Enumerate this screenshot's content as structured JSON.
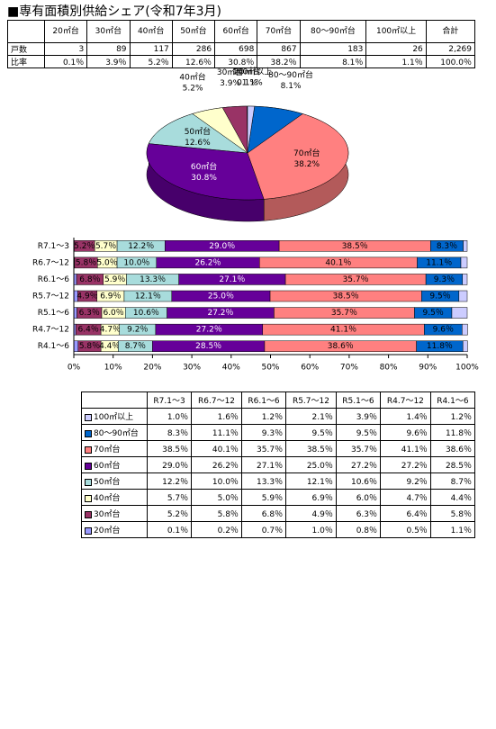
{
  "title": "■専有面積別供給シェア(令和7年3月)",
  "summary_table": {
    "header": [
      "20㎡台",
      "30㎡台",
      "40㎡台",
      "50㎡台",
      "60㎡台",
      "70㎡台",
      "80～90㎡台",
      "100㎡以上",
      "合計"
    ],
    "rows": [
      {
        "label": "戸数",
        "cells": [
          "3",
          "89",
          "117",
          "286",
          "698",
          "867",
          "183",
          "26",
          "2,269"
        ]
      },
      {
        "label": "比率",
        "cells": [
          "0.1％",
          "3.9％",
          "5.2％",
          "12.6％",
          "30.8％",
          "38.2％",
          "8.1％",
          "1.1％",
          "100.0％"
        ]
      }
    ]
  },
  "chart_data": [
    {
      "type": "pie",
      "categories": [
        "20㎡台",
        "30㎡台",
        "40㎡台",
        "50㎡台",
        "60㎡台",
        "70㎡台",
        "80～90㎡台",
        "100㎡以上"
      ],
      "values": [
        0.1,
        3.9,
        5.2,
        12.6,
        30.8,
        38.2,
        8.1,
        1.1
      ],
      "value_labels": [
        "0.1%",
        "3.9%",
        "5.2%",
        "12.6%",
        "30.8%",
        "38.2%",
        "8.1%",
        "1.1%"
      ],
      "colors": [
        "#9999ff",
        "#993366",
        "#ffffcc",
        "#a8dcdc",
        "#660099",
        "#ff8080",
        "#0066cc",
        "#ccccff"
      ]
    },
    {
      "type": "stacked-bar",
      "categories": [
        "R7.1～3",
        "R6.7～12",
        "R6.1～6",
        "R5.7～12",
        "R5.1～6",
        "R4.7～12",
        "R4.1～6"
      ],
      "series": [
        {
          "name": "20㎡台",
          "color": "#9999ff",
          "values": [
            0.1,
            0.2,
            0.7,
            1.0,
            0.8,
            0.5,
            1.1
          ]
        },
        {
          "name": "30㎡台",
          "color": "#993366",
          "values": [
            5.2,
            5.8,
            6.8,
            4.9,
            6.3,
            6.4,
            5.8
          ],
          "value_labels": [
            "5.2％",
            "5.8％",
            "6.8％",
            "4.9％",
            "6.3％",
            "6.4％",
            "5.8％"
          ]
        },
        {
          "name": "40㎡台",
          "color": "#ffffcc",
          "values": [
            5.7,
            5.0,
            5.9,
            6.9,
            6.0,
            4.7,
            4.4
          ],
          "value_labels": [
            "5.7％",
            "5.0％",
            "5.9％",
            "6.9％",
            "6.0％",
            "4.7％",
            "4.4％"
          ]
        },
        {
          "name": "50㎡台",
          "color": "#a8dcdc",
          "values": [
            12.2,
            10.0,
            13.3,
            12.1,
            10.6,
            9.2,
            8.7
          ],
          "value_labels": [
            "12.2％",
            "10.0％",
            "13.3％",
            "12.1％",
            "10.6％",
            "9.2％",
            "8.7％"
          ]
        },
        {
          "name": "60㎡台",
          "color": "#660099",
          "values": [
            29.0,
            26.2,
            27.1,
            25.0,
            27.2,
            27.2,
            28.5
          ],
          "value_labels": [
            "29.0％",
            "26.2％",
            "27.1％",
            "25.0％",
            "27.2％",
            "27.2％",
            "28.5％"
          ]
        },
        {
          "name": "70㎡台",
          "color": "#ff8080",
          "values": [
            38.5,
            40.1,
            35.7,
            38.5,
            35.7,
            41.1,
            38.6
          ],
          "value_labels": [
            "38.5％",
            "40.1％",
            "35.7％",
            "38.5％",
            "35.7％",
            "41.1％",
            "38.6％"
          ]
        },
        {
          "name": "80～90㎡台",
          "color": "#0066cc",
          "values": [
            8.3,
            11.1,
            9.3,
            9.5,
            9.5,
            9.6,
            11.8
          ],
          "value_labels": [
            "8.3％",
            "11.1％",
            "9.3％",
            "9.5％",
            "9.5％",
            "9.6％",
            "11.8％"
          ]
        },
        {
          "name": "100㎡以上",
          "color": "#ccccff",
          "values": [
            1.0,
            1.6,
            1.2,
            2.1,
            3.9,
            1.4,
            1.2
          ]
        }
      ],
      "xlim": [
        0,
        100
      ],
      "xticks": [
        {
          "value": 0,
          "label": "0%"
        },
        {
          "value": 10,
          "label": "10%"
        },
        {
          "value": 20,
          "label": "20%"
        },
        {
          "value": 30,
          "label": "30%"
        },
        {
          "value": 40,
          "label": "40%"
        },
        {
          "value": 50,
          "label": "50%"
        },
        {
          "value": 60,
          "label": "60%"
        },
        {
          "value": 70,
          "label": "70%"
        },
        {
          "value": 80,
          "label": "80%"
        },
        {
          "value": 90,
          "label": "90%"
        },
        {
          "value": 100,
          "label": "100%"
        }
      ]
    }
  ],
  "data_table": {
    "rows": [
      [
        "1.0％",
        "1.6％",
        "1.2％",
        "2.1％",
        "3.9％",
        "1.4％",
        "1.2％"
      ],
      [
        "8.3％",
        "11.1％",
        "9.3％",
        "9.5％",
        "9.5％",
        "9.6％",
        "11.8％"
      ],
      [
        "38.5％",
        "40.1％",
        "35.7％",
        "38.5％",
        "35.7％",
        "41.1％",
        "38.6％"
      ],
      [
        "29.0％",
        "26.2％",
        "27.1％",
        "25.0％",
        "27.2％",
        "27.2％",
        "28.5％"
      ],
      [
        "12.2％",
        "10.0％",
        "13.3％",
        "12.1％",
        "10.6％",
        "9.2％",
        "8.7％"
      ],
      [
        "5.7％",
        "5.0％",
        "5.9％",
        "6.9％",
        "6.0％",
        "4.7％",
        "4.4％"
      ],
      [
        "5.2％",
        "5.8％",
        "6.8％",
        "4.9％",
        "6.3％",
        "6.4％",
        "5.8％"
      ],
      [
        "0.1％",
        "0.2％",
        "0.7％",
        "1.0％",
        "0.8％",
        "0.5％",
        "1.1％"
      ]
    ]
  }
}
